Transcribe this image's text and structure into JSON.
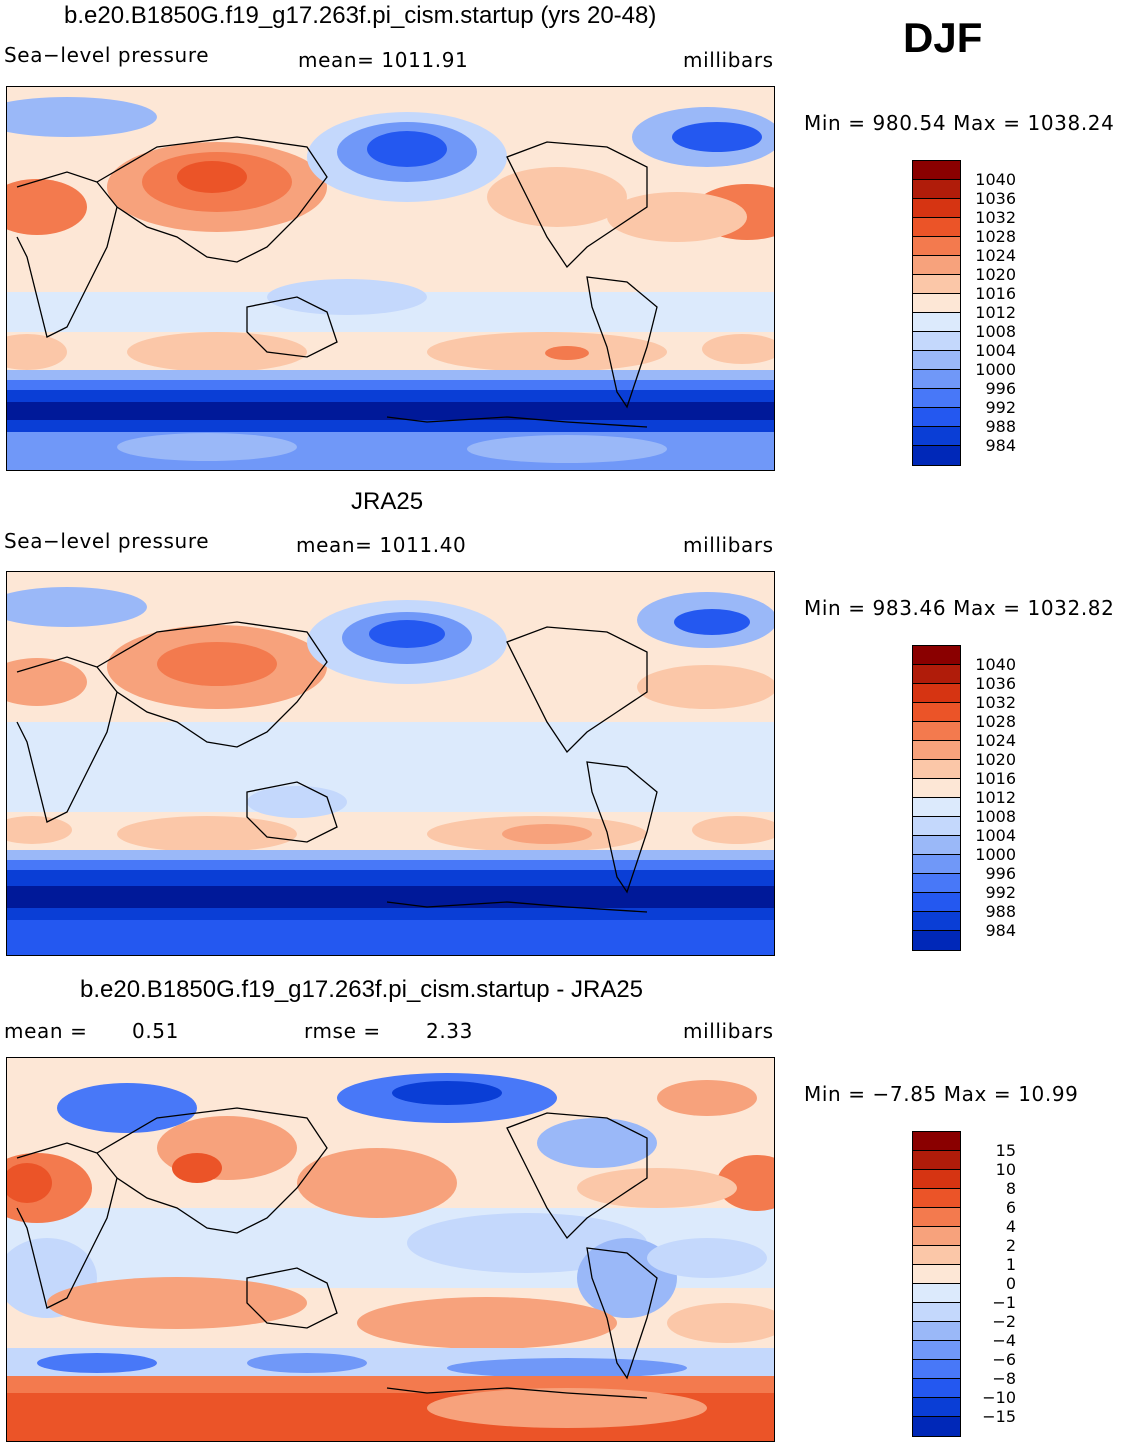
{
  "season_label": "DJF",
  "colors": {
    "abs_scale": [
      "#000a80",
      "#001999",
      "#0028b8",
      "#0a3ed6",
      "#2458f0",
      "#4878f8",
      "#7098f8",
      "#9ab8f8",
      "#c4d8fc",
      "#dceafc",
      "#fde7d6",
      "#fbc7a8",
      "#f7a27c",
      "#f37a4e",
      "#eb5428",
      "#d63412",
      "#b01c0a",
      "#8a0000"
    ],
    "diff_scale": [
      "#000a80",
      "#001999",
      "#0028b8",
      "#0a3ed6",
      "#2458f0",
      "#4878f8",
      "#7098f8",
      "#9ab8f8",
      "#c4d8fc",
      "#dceafc",
      "#fde7d6",
      "#fbc7a8",
      "#f7a27c",
      "#f37a4e",
      "#eb5428",
      "#d63412",
      "#b01c0a",
      "#8a0000"
    ]
  },
  "panels": [
    {
      "title": "b.e20.B1850G.f19_g17.263f.pi_cism.startup (yrs 20-48)",
      "variable": "Sea−level pressure",
      "stat": "mean=  1011.91",
      "units": "millibars",
      "minmax": "Min  =  980.54  Max  =  1038.24",
      "colorbar_labels": [
        "1040",
        "1036",
        "1032",
        "1028",
        "1024",
        "1020",
        "1016",
        "1012",
        "1008",
        "1004",
        "1000",
        "996",
        "992",
        "988",
        "984"
      ]
    },
    {
      "title": "JRA25",
      "variable": "Sea−level pressure",
      "stat": "mean=  1011.40",
      "units": "millibars",
      "minmax": "Min  =  983.46  Max  =  1032.82",
      "colorbar_labels": [
        "1040",
        "1036",
        "1032",
        "1028",
        "1024",
        "1020",
        "1016",
        "1012",
        "1008",
        "1004",
        "1000",
        "996",
        "992",
        "988",
        "984"
      ]
    },
    {
      "title": "b.e20.B1850G.f19_g17.263f.pi_cism.startup - JRA25",
      "mean_label": "mean  =",
      "mean_value": "0.51",
      "rmse_label": "rmse  =",
      "rmse_value": "2.33",
      "units": "millibars",
      "minmax": "Min  =    −7.85  Max  =    10.99",
      "colorbar_labels": [
        "15",
        "10",
        "8",
        "6",
        "4",
        "2",
        "1",
        "0",
        "−1",
        "−2",
        "−4",
        "−6",
        "−8",
        "−10",
        "−15"
      ]
    }
  ]
}
